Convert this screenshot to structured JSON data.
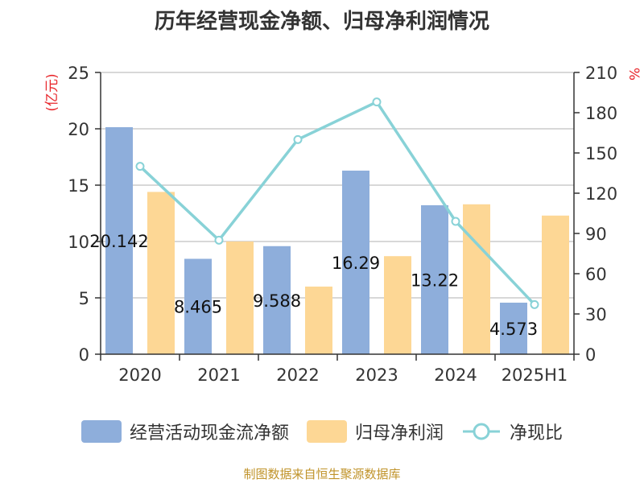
{
  "title": "历年经营现金净额、归母净利润情况",
  "left_unit": "(亿元)",
  "right_unit": "%",
  "source": "制图数据来自恒生聚源数据库",
  "colors": {
    "cash_flow": "#8eaedb",
    "net_profit": "#fdd795",
    "ratio_line": "#88d2d7"
  },
  "legend": {
    "cash_flow": "经营活动现金流净额",
    "net_profit": "归母净利润",
    "ratio": "净现比"
  },
  "chart_data": {
    "type": "bar",
    "categories": [
      "2020",
      "2021",
      "2022",
      "2023",
      "2024",
      "2025H1"
    ],
    "series": [
      {
        "name": "经营活动现金流净额",
        "axis": "left",
        "values": [
          20.142,
          8.465,
          9.588,
          16.29,
          13.22,
          4.573
        ],
        "labels": [
          "20.142",
          "8.465",
          "9.588",
          "16.29",
          "13.22",
          "4.573"
        ]
      },
      {
        "name": "归母净利润",
        "axis": "left",
        "values": [
          14.4,
          10.0,
          6.0,
          8.7,
          13.3,
          12.3
        ]
      },
      {
        "name": "净现比",
        "type": "line",
        "axis": "right",
        "values": [
          140,
          85,
          160,
          188,
          99,
          37
        ]
      }
    ],
    "ylim_left": [
      0,
      25
    ],
    "yticks_left": [
      0,
      5,
      10,
      15,
      20,
      25
    ],
    "ylim_right": [
      0,
      210
    ],
    "yticks_right": [
      0,
      30,
      60,
      90,
      120,
      150,
      180,
      210
    ],
    "grid": true,
    "legend_position": "bottom"
  }
}
